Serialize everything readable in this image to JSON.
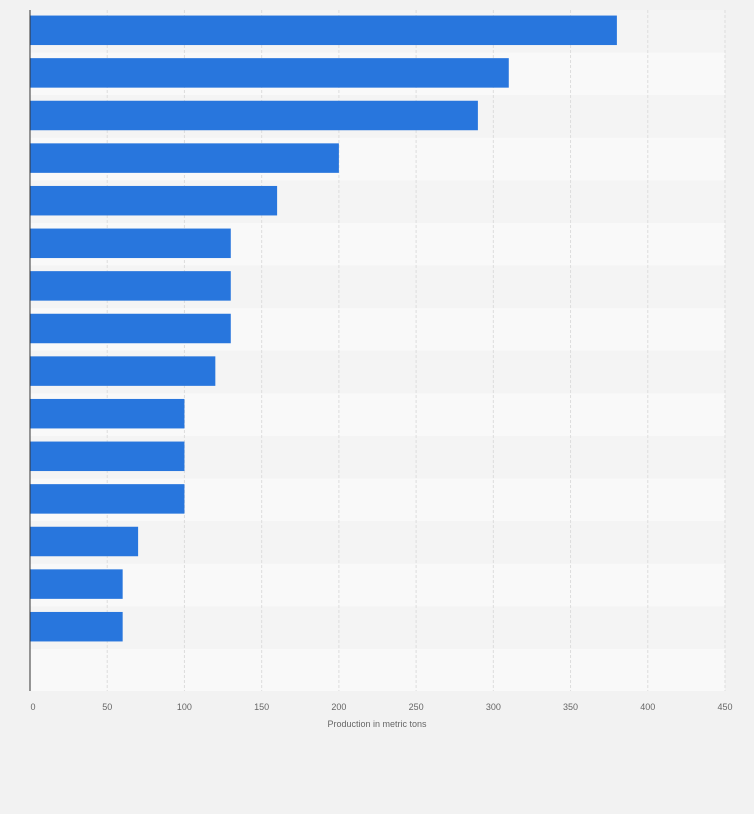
{
  "chart_data": {
    "type": "bar",
    "orientation": "horizontal",
    "categories": [
      "",
      "",
      "",
      "",
      "",
      "",
      "",
      "",
      "",
      "",
      "",
      "",
      "",
      "",
      ""
    ],
    "values": [
      380,
      310,
      290,
      200,
      160,
      130,
      130,
      130,
      120,
      100,
      100,
      100,
      70,
      60,
      60
    ],
    "xlabel": "Production in metric tons",
    "ylabel": "",
    "xlim": [
      0,
      450
    ],
    "xticks": [
      0,
      50,
      100,
      150,
      200,
      250,
      300,
      350,
      400,
      450
    ],
    "grid": true,
    "colors": {
      "bar": "#2876dd",
      "band_a": "#f4f4f4",
      "band_b": "#f9f9f9",
      "grid": "#dddddd",
      "axis": "#333333",
      "tick_text": "#666666"
    }
  }
}
